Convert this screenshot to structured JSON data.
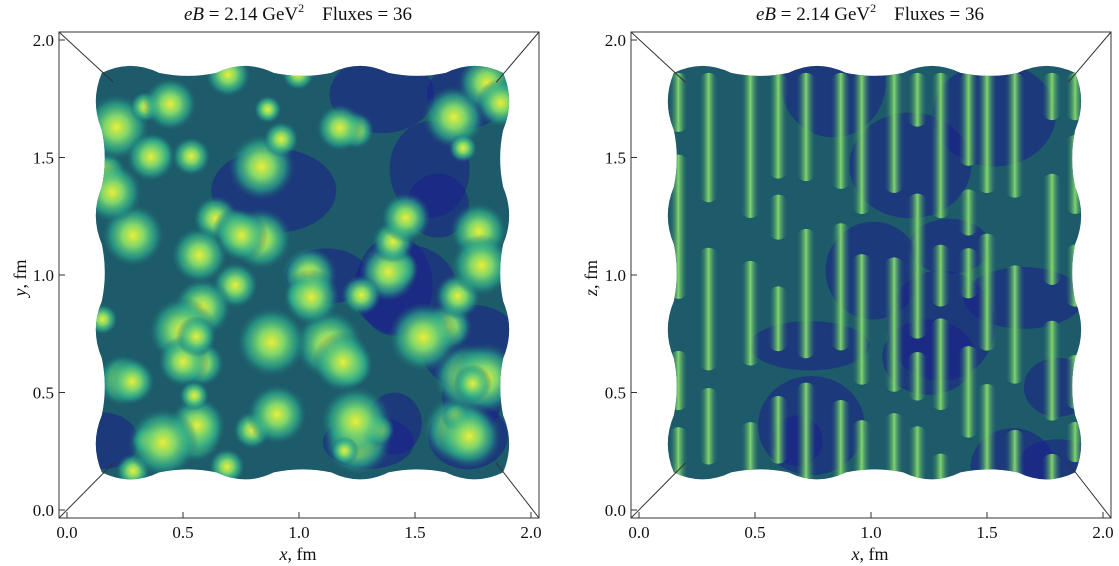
{
  "chart_data": [
    {
      "type": "heatmap",
      "title_parts": {
        "var": "eB",
        "eq": " = 2.14 GeV",
        "sup": "2",
        "rest": "Fluxes = 36"
      },
      "xlabel": {
        "var": "x",
        "unit": ", fm"
      },
      "ylabel": {
        "var": "y",
        "unit": ", fm"
      },
      "xlim": [
        0.0,
        2.0
      ],
      "ylim": [
        0.0,
        2.0
      ],
      "xticks": [
        0.0,
        0.5,
        1.0,
        1.5,
        2.0
      ],
      "yticks": [
        0.0,
        0.5,
        1.0,
        1.5,
        2.0
      ],
      "tick_labels": [
        "0.0",
        "0.5",
        "1.0",
        "1.5",
        "2.0"
      ],
      "pattern": "blobs",
      "colormap": [
        "#1b1f8a",
        "#1d5a6a",
        "#2aa88a",
        "#7fd66b",
        "#e8ef3a"
      ]
    },
    {
      "type": "heatmap",
      "title_parts": {
        "var": "eB",
        "eq": " = 2.14 GeV",
        "sup": "2",
        "rest": "Fluxes = 36"
      },
      "xlabel": {
        "var": "x",
        "unit": ", fm"
      },
      "ylabel": {
        "var": "z",
        "unit": ", fm"
      },
      "xlim": [
        0.0,
        2.0
      ],
      "ylim": [
        0.0,
        2.0
      ],
      "xticks": [
        0.0,
        0.5,
        1.0,
        1.5,
        2.0
      ],
      "yticks": [
        0.0,
        0.5,
        1.0,
        1.5,
        2.0
      ],
      "tick_labels": [
        "0.0",
        "0.5",
        "1.0",
        "1.5",
        "2.0"
      ],
      "pattern": "stripes",
      "colormap": [
        "#1b1f8a",
        "#1d5a6a",
        "#2aa88a",
        "#7fd66b",
        "#e8ef3a"
      ]
    }
  ]
}
